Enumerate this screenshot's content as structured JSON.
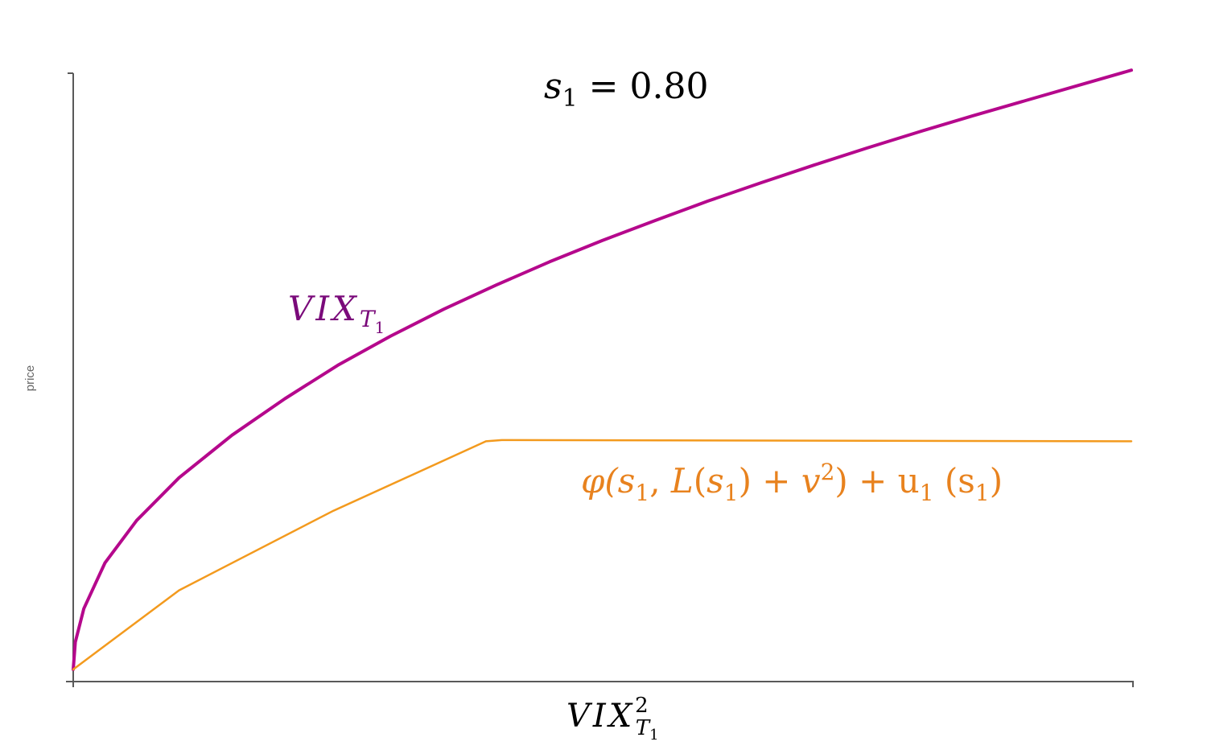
{
  "chart_data": {
    "type": "line",
    "title": "s₁ = 0.80",
    "xlabel": "VIX²_T₁",
    "ylabel": "price",
    "grid": false,
    "legend": "none",
    "series": [
      {
        "name": "VIX_T₁",
        "color": "#B5088C",
        "label_text": {
          "main": "VIX",
          "sub": "T",
          "subsub": "1"
        },
        "x": [
          0,
          0.002,
          0.01,
          0.03,
          0.06,
          0.1,
          0.15,
          0.2,
          0.25,
          0.3,
          0.35,
          0.4,
          0.45,
          0.5,
          0.55,
          0.6,
          0.65,
          0.7,
          0.75,
          0.8,
          0.85,
          0.9,
          0.95,
          1.0
        ],
        "y": [
          0.02,
          0.065,
          0.12,
          0.195,
          0.265,
          0.335,
          0.405,
          0.465,
          0.52,
          0.568,
          0.612,
          0.652,
          0.69,
          0.725,
          0.758,
          0.79,
          0.82,
          0.849,
          0.877,
          0.904,
          0.93,
          0.955,
          0.98,
          1.005
        ]
      },
      {
        "name": "φ(s₁, L(s₁) + v²) + u₁ (s₁)",
        "color": "#F39A1E",
        "label_color": "#E8821E",
        "x": [
          0,
          0.1,
          0.245,
          0.39,
          0.405,
          1.0
        ],
        "y": [
          0.02,
          0.15,
          0.28,
          0.395,
          0.397,
          0.395
        ]
      }
    ],
    "xlim": [
      0,
      1
    ],
    "ylim": [
      0,
      1
    ]
  },
  "colors": {
    "axis": "#595959",
    "title": "#000000",
    "ylabel": "#666666",
    "vix_label": "#7A0A7A",
    "phi_label": "#E8821E"
  },
  "title_parts": {
    "var": "s",
    "sub": "1",
    "rest": " = 0.80"
  },
  "xlabel_parts": {
    "main": "VIX",
    "sup": "2",
    "sub": "T",
    "subsub": "1"
  },
  "phi_label_parts": {
    "t1": "φ(",
    "t2": "s",
    "t3": "1",
    "t4": ", ",
    "t5": "L",
    "t6": "(",
    "t7": "s",
    "t8": "1",
    "t9": ") + ",
    "t10": "v",
    "t11": "2",
    "t12": ") + u",
    "t13": "1",
    "t14": " (s",
    "t15": "1",
    "t16": ")"
  }
}
